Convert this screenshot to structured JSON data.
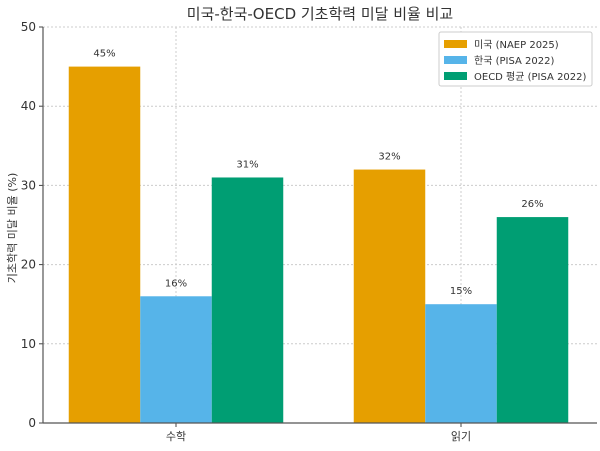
{
  "chart_data": {
    "type": "bar",
    "title": "미국-한국-OECD 기초학력 미달 비율 비교",
    "xlabel": "",
    "ylabel": "기초학력 미달 비율 (%)",
    "categories": [
      "수학",
      "읽기"
    ],
    "series": [
      {
        "name": "미국 (NAEP 2025)",
        "values": [
          45,
          32
        ],
        "labels": [
          "45%",
          "32%"
        ],
        "color": "#E69F00"
      },
      {
        "name": "한국 (PISA 2022)",
        "values": [
          16,
          15
        ],
        "labels": [
          "16%",
          "15%"
        ],
        "color": "#56B4E9"
      },
      {
        "name": "OECD 평균 (PISA 2022)",
        "values": [
          31,
          26
        ],
        "labels": [
          "31%",
          "26%"
        ],
        "color": "#009E73"
      }
    ],
    "ylim": [
      0,
      50
    ],
    "yticks": [
      0,
      10,
      20,
      30,
      40,
      50
    ],
    "grid": true,
    "legend": "top-right"
  }
}
